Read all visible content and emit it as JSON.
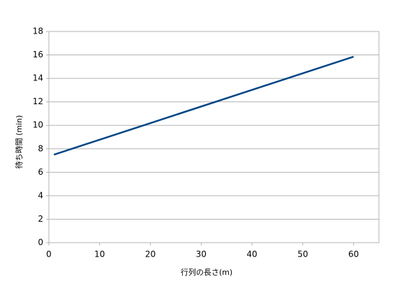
{
  "chart_data": {
    "type": "line",
    "x_label": "行列の長さ(m)",
    "y_label": "待ち時間 (min)",
    "x": [
      1,
      60
    ],
    "series": [
      {
        "name": "待ち時間",
        "color": "#004586",
        "values": [
          7.5,
          15.85
        ]
      }
    ],
    "xlim": [
      0,
      65
    ],
    "xticks": [
      0,
      10,
      20,
      30,
      40,
      50,
      60
    ],
    "ylim": [
      0,
      18
    ],
    "yticks": [
      0,
      2,
      4,
      6,
      8,
      10,
      12,
      14,
      16,
      18
    ],
    "grid": true
  }
}
